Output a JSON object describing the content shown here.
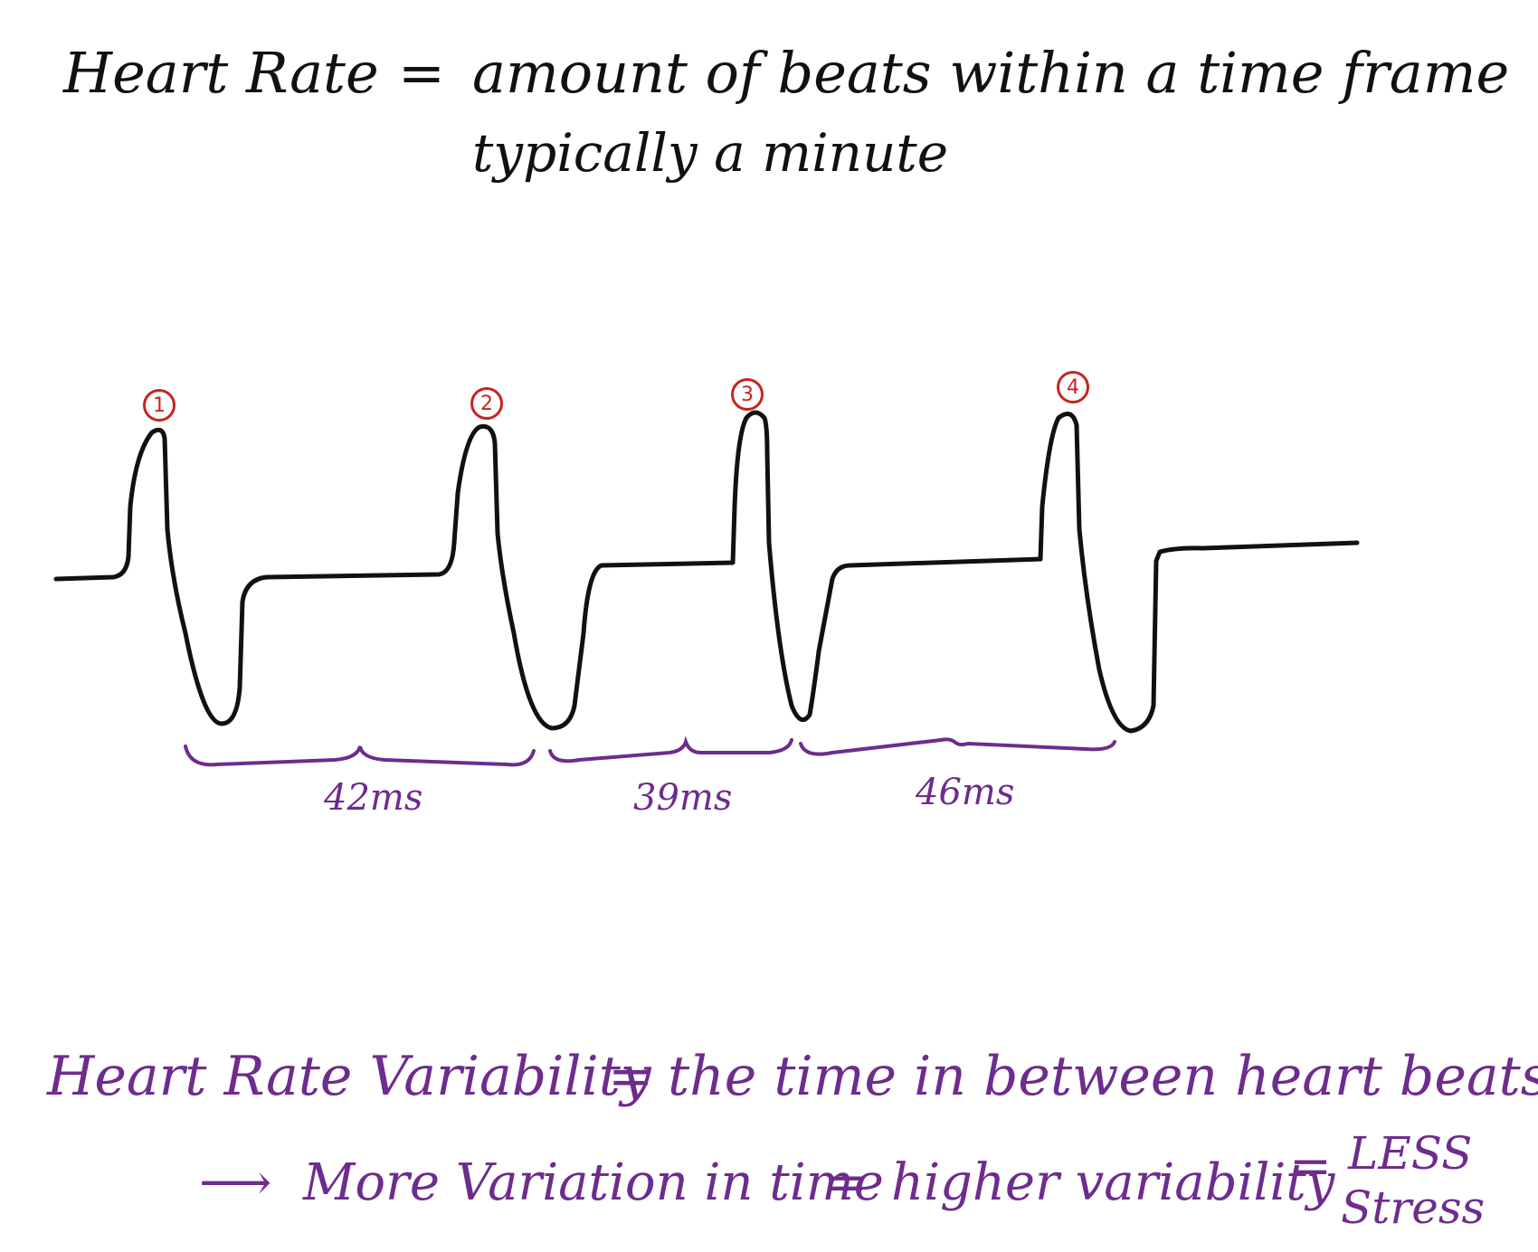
{
  "hr_definition": {
    "term": "Heart Rate",
    "equals": "=",
    "line1": "amount of beats within a time frame",
    "line2": "typically a minute"
  },
  "beats": [
    "1",
    "2",
    "3",
    "4"
  ],
  "intervals": [
    "42ms",
    "39ms",
    "46ms"
  ],
  "hrv_definition": {
    "term": "Heart Rate Variability",
    "equals": "=",
    "definition": "the time in between heart beats"
  },
  "conclusion": {
    "arrow": "⟶",
    "part1": "More Variation in time",
    "eq1": "=",
    "part2": "higher variability",
    "eq2": "=",
    "part3a": "LESS",
    "part3b": "Stress"
  },
  "colors": {
    "ink": "#111111",
    "purple": "#6e2c8e",
    "red": "#c7241f"
  }
}
